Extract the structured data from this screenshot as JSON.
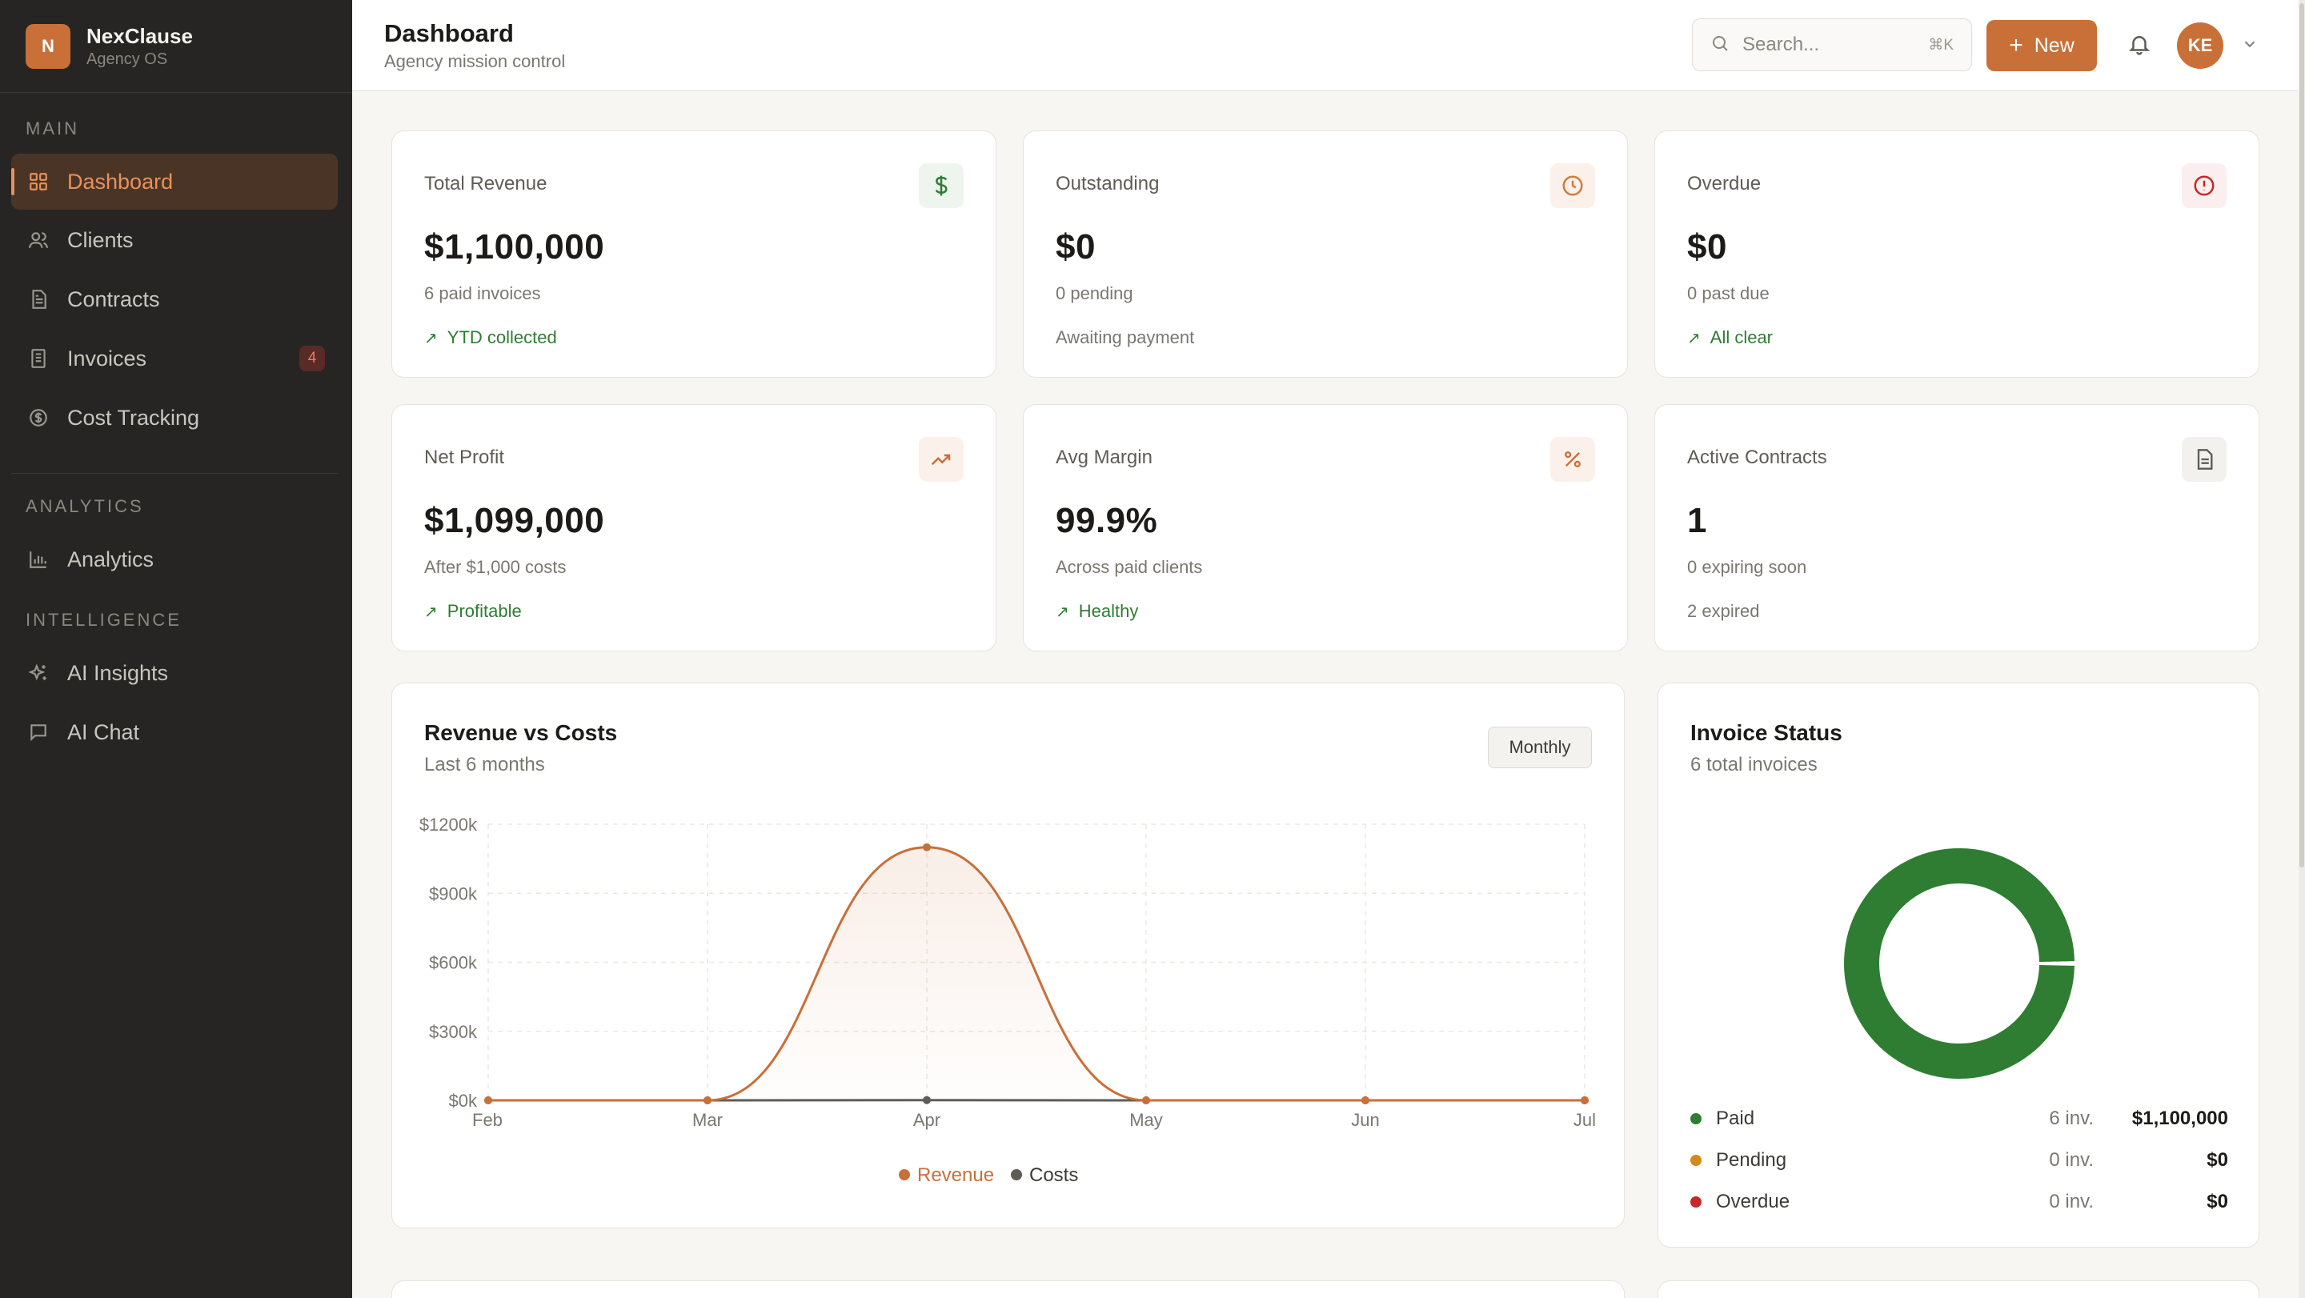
{
  "brand": {
    "logo_letter": "N",
    "name": "NexClause",
    "subtitle": "Agency OS"
  },
  "sidebar": {
    "sections": [
      {
        "label": "MAIN"
      },
      {
        "label": "ANALYTICS"
      },
      {
        "label": "INTELLIGENCE"
      }
    ],
    "items": [
      {
        "label": "Dashboard",
        "icon": "grid-icon",
        "active": true
      },
      {
        "label": "Clients",
        "icon": "users-icon"
      },
      {
        "label": "Contracts",
        "icon": "file-text-icon"
      },
      {
        "label": "Invoices",
        "icon": "receipt-icon",
        "badge": "4"
      },
      {
        "label": "Cost Tracking",
        "icon": "dollar-circle-icon"
      },
      {
        "label": "Analytics",
        "icon": "bar-chart-icon"
      },
      {
        "label": "AI Insights",
        "icon": "sparkles-icon"
      },
      {
        "label": "AI Chat",
        "icon": "chat-icon"
      }
    ]
  },
  "header": {
    "title": "Dashboard",
    "subtitle": "Agency mission control",
    "search_placeholder": "Search...",
    "search_shortcut": "⌘K",
    "new_button": "New",
    "avatar_initials": "KE"
  },
  "kpis": [
    {
      "label": "Total Revenue",
      "value": "$1,100,000",
      "sub": "6 paid invoices",
      "foot": "YTD collected",
      "foot_good": true,
      "icon": "dollar-icon",
      "icon_color": "#2e7d32",
      "icon_bg": "#eef5ee"
    },
    {
      "label": "Outstanding",
      "value": "$0",
      "sub": "0 pending",
      "foot": "Awaiting payment",
      "foot_good": false,
      "icon": "clock-icon",
      "icon_color": "#d47a3a",
      "icon_bg": "#fbf1ea"
    },
    {
      "label": "Overdue",
      "value": "$0",
      "sub": "0 past due",
      "foot": "All clear",
      "foot_good": true,
      "icon": "alert-circle-icon",
      "icon_color": "#c62828",
      "icon_bg": "#fbeeee"
    },
    {
      "label": "Net Profit",
      "value": "$1,099,000",
      "sub": "After $1,000 costs",
      "foot": "Profitable",
      "foot_good": true,
      "icon": "trending-up-icon",
      "icon_color": "#c96f38",
      "icon_bg": "#fbf1ea"
    },
    {
      "label": "Avg Margin",
      "value": "99.9%",
      "sub": "Across paid clients",
      "foot": "Healthy",
      "foot_good": true,
      "icon": "percent-icon",
      "icon_color": "#c96f38",
      "icon_bg": "#fbf1ea"
    },
    {
      "label": "Active Contracts",
      "value": "1",
      "sub": "0 expiring soon",
      "foot": "2 expired",
      "foot_good": false,
      "icon": "document-icon",
      "icon_color": "#5f5c56",
      "icon_bg": "#f2f1ee"
    }
  ],
  "revenue_chart": {
    "title": "Revenue vs Costs",
    "subtitle": "Last 6 months",
    "period_button": "Monthly",
    "legend": [
      {
        "label": "Revenue",
        "color": "#c96f38"
      },
      {
        "label": "Costs",
        "color": "#5f5c56"
      }
    ]
  },
  "invoice_status": {
    "title": "Invoice Status",
    "subtitle": "6 total invoices",
    "rows": [
      {
        "label": "Paid",
        "count": "6 inv.",
        "amount": "$1,100,000",
        "color": "#2e7d32"
      },
      {
        "label": "Pending",
        "count": "0 inv.",
        "amount": "$0",
        "color": "#d4891a"
      },
      {
        "label": "Overdue",
        "count": "0 inv.",
        "amount": "$0",
        "color": "#c62828"
      }
    ]
  },
  "chart_data": [
    {
      "type": "area",
      "categories": [
        "Feb",
        "Mar",
        "Apr",
        "May",
        "Jun",
        "Jul"
      ],
      "series": [
        {
          "name": "Revenue",
          "values": [
            0,
            0,
            1100000,
            0,
            0,
            0
          ],
          "color": "#c96f38"
        },
        {
          "name": "Costs",
          "values": [
            0,
            0,
            1000,
            0,
            0,
            0
          ],
          "color": "#5f5c56"
        }
      ],
      "yticks": [
        "$0k",
        "$300k",
        "$600k",
        "$900k",
        "$1200k"
      ],
      "ylim": [
        0,
        1200000
      ],
      "title": "Revenue vs Costs",
      "subtitle": "Last 6 months",
      "grid": true,
      "legend_position": "bottom"
    },
    {
      "type": "pie",
      "categories": [
        "Paid",
        "Pending",
        "Overdue"
      ],
      "values": [
        6,
        0,
        0
      ],
      "title": "Invoice Status",
      "subtitle": "6 total invoices"
    }
  ]
}
